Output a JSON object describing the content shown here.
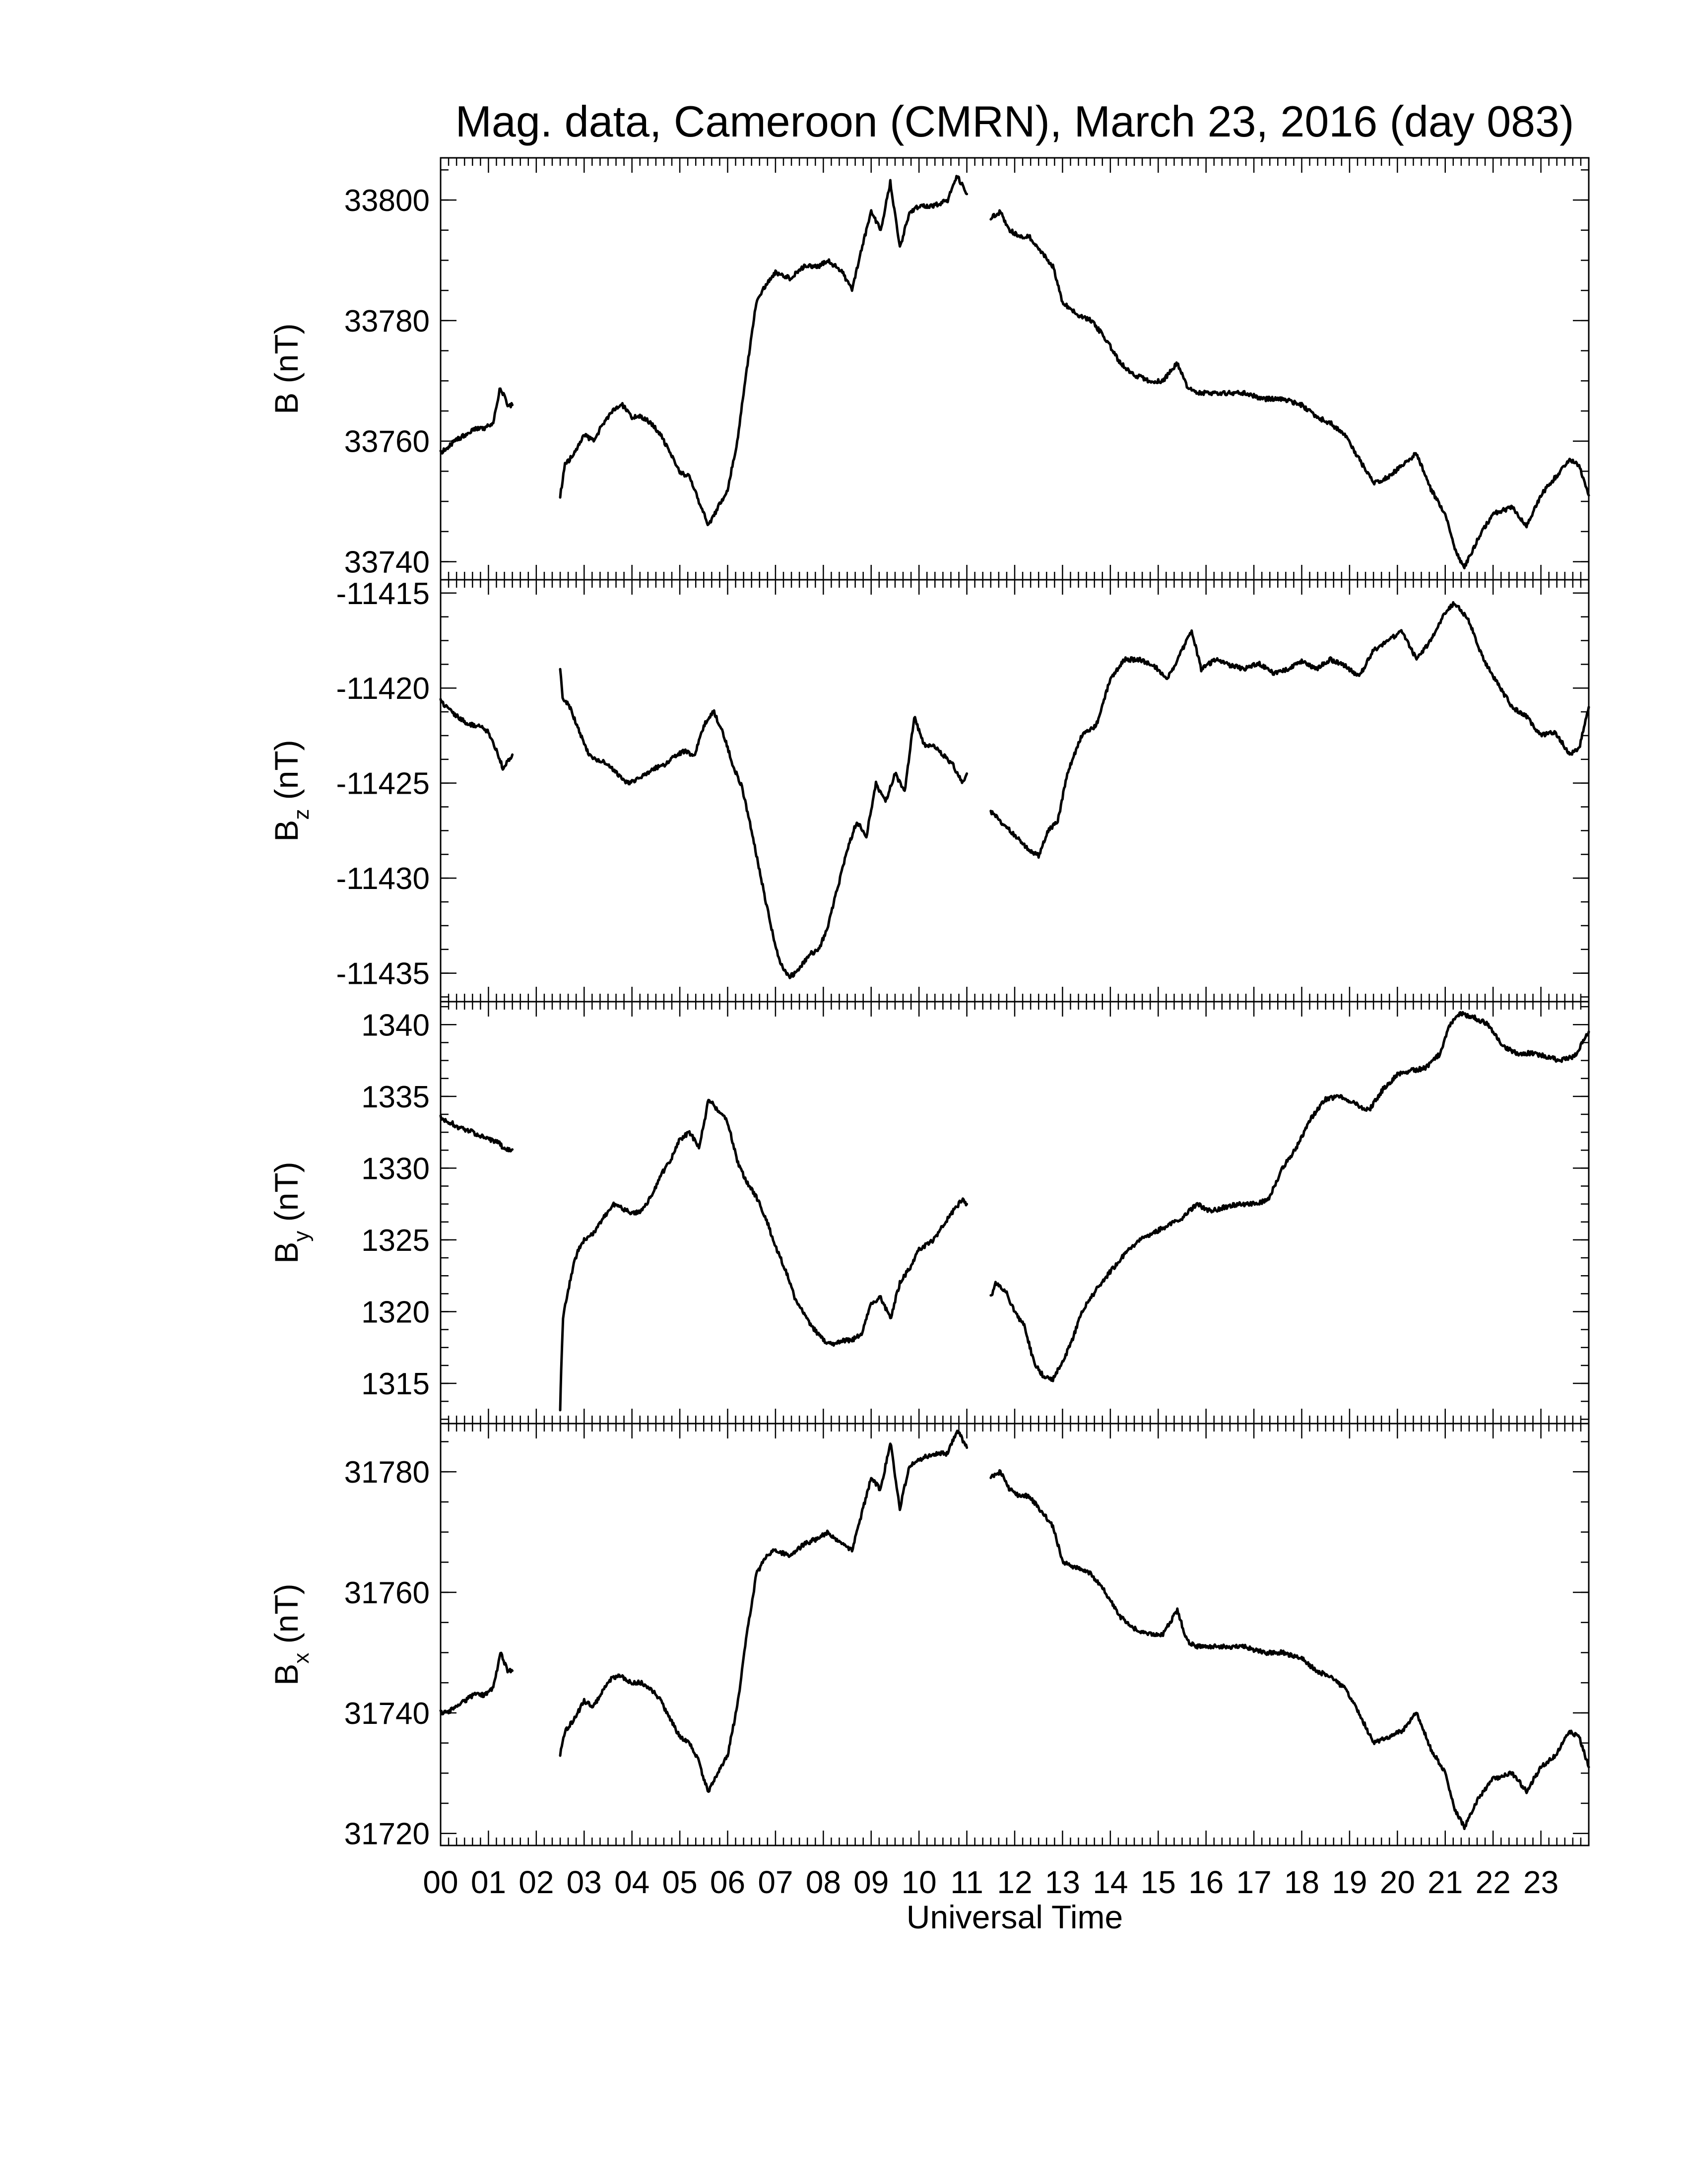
{
  "chart_data": {
    "type": "line",
    "title": "Mag. data, Cameroon (CMRN), March 23, 2016 (day 083)",
    "xlabel": "Universal Time",
    "x_unit": "hour (UT)",
    "xlim": [
      0,
      24
    ],
    "x_tick_labels": [
      "00",
      "01",
      "02",
      "03",
      "04",
      "05",
      "06",
      "07",
      "08",
      "09",
      "10",
      "11",
      "12",
      "13",
      "14",
      "15",
      "16",
      "17",
      "18",
      "19",
      "20",
      "21",
      "22",
      "23"
    ],
    "x_tick_values": [
      0,
      1,
      2,
      3,
      4,
      5,
      6,
      7,
      8,
      9,
      10,
      11,
      12,
      13,
      14,
      15,
      16,
      17,
      18,
      19,
      20,
      21,
      22,
      23
    ],
    "panels": [
      {
        "id": "B",
        "ylabel_main": "B",
        "ylabel_sub": "",
        "ylabel_unit": "(nT)",
        "ylim": [
          33737,
          33807
        ],
        "yticks": [
          33740,
          33760,
          33780,
          33800
        ],
        "segments": [
          {
            "x": [
              0.0,
              0.15,
              0.3,
              0.5,
              0.7,
              0.9,
              1.1,
              1.25,
              1.4,
              1.5
            ],
            "y": [
              33758,
              33759,
              33760,
              33761,
              33762,
              33762,
              33763,
              33769,
              33766,
              33766
            ]
          },
          {
            "x": [
              2.5,
              2.6,
              2.8,
              3.0,
              3.2,
              3.4,
              3.6,
              3.8,
              4.0,
              4.2,
              4.4,
              4.6,
              4.8,
              5.0,
              5.2,
              5.4,
              5.5,
              5.6,
              5.8,
              6.0,
              6.2,
              6.4,
              6.6,
              6.8,
              7.0,
              7.3,
              7.6,
              7.9,
              8.1,
              8.4,
              8.6,
              8.8,
              9.0,
              9.2,
              9.4,
              9.6,
              9.8,
              10.0,
              10.3,
              10.6,
              10.8,
              11.0
            ],
            "y": [
              33751,
              33756,
              33758,
              33761,
              33760,
              33763,
              33765,
              33766,
              33764,
              33764,
              33763,
              33761,
              33758,
              33755,
              33754,
              33750,
              33748,
              33746,
              33749,
              33752,
              33760,
              33772,
              33783,
              33786,
              33788,
              33787,
              33789,
              33789,
              33790,
              33788,
              33785,
              33792,
              33798,
              33795,
              33803,
              33792,
              33798,
              33799,
              33799,
              33800,
              33804,
              33801
            ]
          },
          {
            "x": [
              11.5,
              11.7,
              11.9,
              12.1,
              12.3,
              12.5,
              12.8,
              13.0,
              13.3,
              13.6,
              13.9,
              14.2,
              14.5,
              14.8,
              15.1,
              15.4,
              15.6,
              15.8,
              16.0,
              16.4,
              16.8,
              17.2,
              17.6,
              18.0,
              18.3,
              18.6,
              18.9,
              19.2,
              19.5,
              19.8,
              20.1,
              20.4,
              20.7,
              21.0,
              21.2,
              21.4,
              21.7,
              22.0,
              22.4,
              22.7,
              23.0,
              23.3,
              23.6,
              23.8,
              24.0
            ],
            "y": [
              33797,
              33798,
              33795,
              33794,
              33794,
              33792,
              33789,
              33783,
              33781,
              33780,
              33777,
              33773,
              33771,
              33770,
              33770,
              33773,
              33769,
              33768,
              33768,
              33768,
              33768,
              33767,
              33767,
              33766,
              33764,
              33763,
              33761,
              33757,
              33753,
              33754,
              33756,
              33758,
              33752,
              33748,
              33742,
              33739,
              33744,
              33748,
              33749,
              33746,
              33751,
              33754,
              33757,
              33756,
              33751
            ]
          }
        ]
      },
      {
        "id": "Bz",
        "ylabel_main": "B",
        "ylabel_sub": "z",
        "ylabel_unit": "(nT)",
        "ylim": [
          -11436.5,
          -11414.3
        ],
        "yticks": [
          -11435,
          -11430,
          -11425,
          -11420,
          -11415
        ],
        "segments": [
          {
            "x": [
              0.0,
              0.2,
              0.4,
              0.6,
              0.8,
              1.0,
              1.2,
              1.3,
              1.5
            ],
            "y": [
              -11420.7,
              -11421.2,
              -11421.6,
              -11421.9,
              -11422.0,
              -11422.3,
              -11423.5,
              -11424.2,
              -11423.5
            ]
          },
          {
            "x": [
              2.5,
              2.55,
              2.7,
              2.9,
              3.1,
              3.3,
              3.5,
              3.7,
              3.9,
              4.1,
              4.3,
              4.5,
              4.7,
              4.9,
              5.1,
              5.3,
              5.5,
              5.7,
              5.9,
              6.1,
              6.3,
              6.5,
              6.7,
              6.9,
              7.1,
              7.3,
              7.5,
              7.7,
              7.9,
              8.1,
              8.3,
              8.5,
              8.7,
              8.9,
              9.1,
              9.3,
              9.5,
              9.7,
              9.9,
              10.1,
              10.3,
              10.5,
              10.7,
              10.9,
              11.0
            ],
            "y": [
              -11419.0,
              -11420.5,
              -11421.0,
              -11422.3,
              -11423.5,
              -11423.8,
              -11424.0,
              -11424.5,
              -11425.0,
              -11424.8,
              -11424.5,
              -11424.2,
              -11424.0,
              -11423.6,
              -11423.3,
              -11423.6,
              -11422.0,
              -11421.2,
              -11422.3,
              -11424.0,
              -11425.2,
              -11427.5,
              -11430.0,
              -11432.5,
              -11434.5,
              -11435.2,
              -11434.8,
              -11434.0,
              -11433.8,
              -11432.5,
              -11430.5,
              -11428.5,
              -11427.0,
              -11427.8,
              -11425.0,
              -11426.0,
              -11424.5,
              -11425.5,
              -11421.5,
              -11423.0,
              -11423.0,
              -11423.5,
              -11424.0,
              -11425.0,
              -11424.5
            ]
          },
          {
            "x": [
              11.5,
              11.7,
              11.9,
              12.1,
              12.3,
              12.5,
              12.7,
              12.9,
              13.1,
              13.4,
              13.7,
              14.0,
              14.3,
              14.6,
              14.9,
              15.2,
              15.5,
              15.7,
              15.9,
              16.2,
              16.5,
              16.8,
              17.1,
              17.4,
              17.7,
              18.0,
              18.3,
              18.6,
              18.9,
              19.2,
              19.5,
              19.8,
              20.1,
              20.4,
              20.7,
              21.0,
              21.2,
              21.5,
              21.8,
              22.1,
              22.4,
              22.7,
              23.0,
              23.3,
              23.6,
              23.8,
              24.0
            ],
            "y": [
              -11426.5,
              -11427.0,
              -11427.5,
              -11428.0,
              -11428.5,
              -11428.8,
              -11427.5,
              -11427.0,
              -11424.5,
              -11422.5,
              -11422.0,
              -11419.5,
              -11418.5,
              -11418.5,
              -11418.8,
              -11419.5,
              -11418.0,
              -11417.0,
              -11419.0,
              -11418.5,
              -11418.8,
              -11419.0,
              -11418.7,
              -11419.2,
              -11419.0,
              -11418.6,
              -11419.0,
              -11418.5,
              -11418.8,
              -11419.4,
              -11418.0,
              -11417.5,
              -11417.0,
              -11418.5,
              -11417.5,
              -11416.0,
              -11415.5,
              -11416.5,
              -11418.5,
              -11419.8,
              -11421.0,
              -11421.5,
              -11422.5,
              -11422.3,
              -11423.5,
              -11423.2,
              -11421.0
            ]
          }
        ]
      },
      {
        "id": "By",
        "ylabel_main": "B",
        "ylabel_sub": "y",
        "ylabel_unit": "(nT)",
        "ylim": [
          1312.2,
          1341.6
        ],
        "yticks": [
          1315,
          1320,
          1325,
          1330,
          1335,
          1340
        ],
        "segments": [
          {
            "x": [
              0.0,
              0.2,
              0.4,
              0.6,
              0.8,
              1.0,
              1.2,
              1.35,
              1.5
            ],
            "y": [
              1333.5,
              1333.2,
              1332.8,
              1332.6,
              1332.3,
              1332.0,
              1331.8,
              1331.3,
              1331.3
            ]
          },
          {
            "x": [
              2.5,
              2.52,
              2.56,
              2.62,
              2.7,
              2.8,
              2.9,
              3.0,
              3.2,
              3.4,
              3.6,
              3.8,
              4.0,
              4.2,
              4.4,
              4.6,
              4.8,
              5.0,
              5.2,
              5.4,
              5.5,
              5.6,
              5.8,
              6.0,
              6.2,
              6.4,
              6.6,
              6.8,
              7.0,
              7.2,
              7.4,
              7.6,
              7.8,
              8.0,
              8.2,
              8.4,
              8.6,
              8.8,
              9.0,
              9.2,
              9.4,
              9.6,
              9.8,
              10.0,
              10.3,
              10.6,
              10.9,
              11.0
            ],
            "y": [
              1313.0,
              1316.0,
              1319.5,
              1320.8,
              1322.0,
              1323.5,
              1324.5,
              1325.0,
              1325.5,
              1326.5,
              1327.5,
              1327.2,
              1326.8,
              1327.0,
              1328.0,
              1329.5,
              1330.5,
              1332.0,
              1332.5,
              1331.5,
              1333.0,
              1334.8,
              1334.0,
              1333.2,
              1330.5,
              1329.0,
              1328.0,
              1326.5,
              1324.5,
              1323.0,
              1321.0,
              1319.8,
              1318.8,
              1318.0,
              1317.7,
              1318.0,
              1318.0,
              1318.5,
              1320.5,
              1321.0,
              1319.5,
              1322.0,
              1323.0,
              1324.3,
              1325.0,
              1326.5,
              1327.8,
              1327.5
            ]
          },
          {
            "x": [
              11.5,
              11.6,
              11.8,
              12.0,
              12.2,
              12.4,
              12.6,
              12.8,
              13.0,
              13.2,
              13.4,
              13.7,
              14.0,
              14.3,
              14.6,
              14.9,
              15.2,
              15.5,
              15.8,
              16.1,
              16.4,
              16.7,
              17.0,
              17.3,
              17.6,
              17.9,
              18.2,
              18.5,
              18.8,
              19.1,
              19.4,
              19.7,
              20.0,
              20.3,
              20.6,
              20.9,
              21.1,
              21.3,
              21.6,
              21.9,
              22.2,
              22.5,
              22.8,
              23.1,
              23.4,
              23.7,
              24.0
            ],
            "y": [
              1321.0,
              1322.0,
              1321.5,
              1320.0,
              1319.0,
              1316.5,
              1315.5,
              1315.3,
              1316.5,
              1318.0,
              1320.0,
              1321.5,
              1322.8,
              1324.0,
              1325.0,
              1325.5,
              1326.0,
              1326.5,
              1327.5,
              1327.0,
              1327.3,
              1327.5,
              1327.5,
              1327.8,
              1330.0,
              1331.5,
              1333.5,
              1334.8,
              1335.0,
              1334.5,
              1334.0,
              1335.5,
              1336.5,
              1336.8,
              1337.0,
              1338.0,
              1340.0,
              1340.8,
              1340.5,
              1340.0,
              1338.5,
              1338.0,
              1338.0,
              1337.8,
              1337.5,
              1337.8,
              1339.5
            ]
          }
        ]
      },
      {
        "id": "Bx",
        "ylabel_main": "B",
        "ylabel_sub": "x",
        "ylabel_unit": "(nT)",
        "ylim": [
          31718,
          31788
        ],
        "yticks": [
          31720,
          31740,
          31760,
          31780
        ],
        "segments": [
          {
            "x": [
              0.0,
              0.15,
              0.3,
              0.5,
              0.7,
              0.9,
              1.1,
              1.25,
              1.4,
              1.5
            ],
            "y": [
              31740,
              31740,
              31741,
              31742,
              31743,
              31743,
              31744,
              31750,
              31747,
              31747
            ]
          },
          {
            "x": [
              2.5,
              2.6,
              2.8,
              3.0,
              3.2,
              3.4,
              3.6,
              3.8,
              4.0,
              4.2,
              4.4,
              4.6,
              4.8,
              5.0,
              5.2,
              5.4,
              5.5,
              5.6,
              5.8,
              6.0,
              6.2,
              6.4,
              6.6,
              6.8,
              7.0,
              7.3,
              7.6,
              7.9,
              8.1,
              8.4,
              8.6,
              8.8,
              9.0,
              9.2,
              9.4,
              9.6,
              9.8,
              10.0,
              10.3,
              10.6,
              10.8,
              11.0
            ],
            "y": [
              31733,
              31737,
              31739,
              31742,
              31741,
              31744,
              31746,
              31746,
              31745,
              31745,
              31744,
              31742,
              31739,
              31736,
              31735,
              31732,
              31729,
              31727,
              31730,
              31733,
              31741,
              31753,
              31763,
              31766,
              31767,
              31766,
              31768,
              31769,
              31770,
              31768,
              31767,
              31773,
              31779,
              31777,
              31785,
              31774,
              31781,
              31782,
              31783,
              31783,
              31787,
              31784
            ]
          },
          {
            "x": [
              11.5,
              11.7,
              11.9,
              12.1,
              12.3,
              12.5,
              12.8,
              13.0,
              13.3,
              13.6,
              13.9,
              14.2,
              14.5,
              14.8,
              15.1,
              15.4,
              15.6,
              15.8,
              16.0,
              16.4,
              16.8,
              17.2,
              17.6,
              18.0,
              18.3,
              18.6,
              18.9,
              19.2,
              19.5,
              19.8,
              20.1,
              20.4,
              20.7,
              21.0,
              21.2,
              21.4,
              21.7,
              22.0,
              22.4,
              22.7,
              23.0,
              23.3,
              23.6,
              23.8,
              24.0
            ],
            "y": [
              31779,
              31780,
              31777,
              31776,
              31776,
              31774,
              31771,
              31765,
              31764,
              31763,
              31760,
              31756,
              31754,
              31753,
              31753,
              31757,
              31752,
              31751,
              31751,
              31751,
              31751,
              31750,
              31750,
              31749,
              31747,
              31746,
              31744,
              31740,
              31735,
              31736,
              31737,
              31740,
              31734,
              31730,
              31724,
              31721,
              31726,
              31729,
              31730,
              31727,
              31731,
              31733,
              31737,
              31736,
              31731
            ]
          }
        ]
      }
    ]
  }
}
